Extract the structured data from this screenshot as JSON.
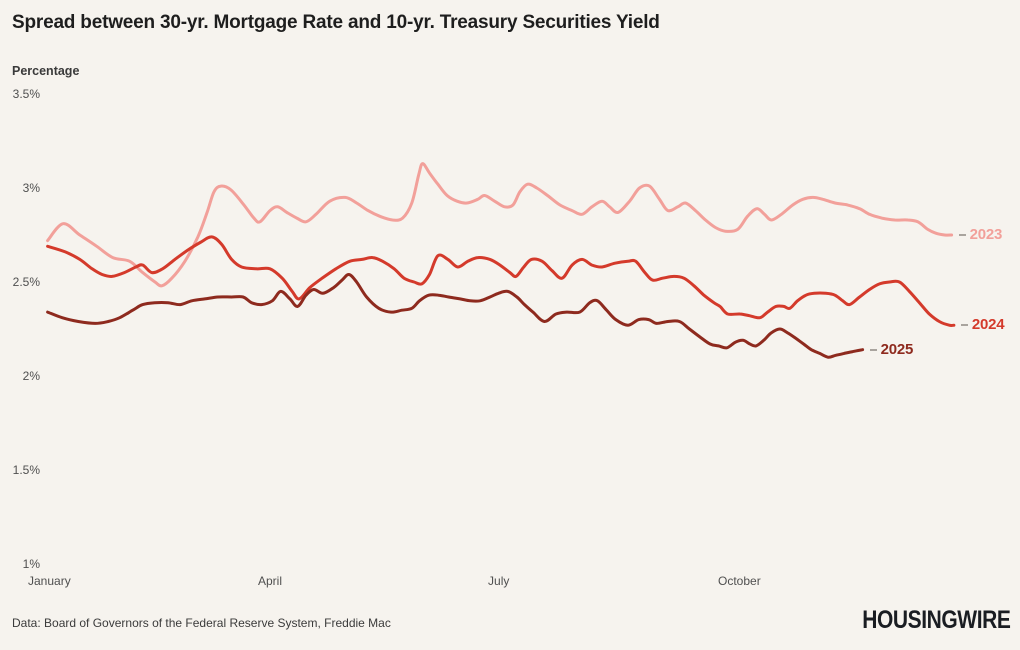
{
  "title": "Spread between 30-yr. Mortgage Rate and 10-yr. Treasury Securities Yield",
  "source": "Data: Board of Governors of the Federal Reserve System, Freddie Mac",
  "logo": "HOUSINGWIRE",
  "colors": {
    "background": "#f6f3ee",
    "series_2023": "#f2a09a",
    "series_2024": "#d43a2b",
    "series_2025": "#8e2a1e",
    "tick_text": "#4f4f4f",
    "title_text": "#1e1e1e"
  },
  "chart_data": {
    "type": "line",
    "title": "Spread between 30-yr. Mortgage Rate and 10-yr. Treasury Securities Yield",
    "ylabel": "Percentage",
    "xlabel": "",
    "ylim": [
      1,
      3.5
    ],
    "xlim_months": [
      0,
      12.1
    ],
    "grid": false,
    "legend_position": "line-end-right",
    "y_ticks": [
      {
        "value": 3.5,
        "label": "3.5%"
      },
      {
        "value": 3.0,
        "label": "3%"
      },
      {
        "value": 2.5,
        "label": "2.5%"
      },
      {
        "value": 2.0,
        "label": "2%"
      },
      {
        "value": 1.5,
        "label": "1.5%"
      },
      {
        "value": 1.0,
        "label": "1%"
      }
    ],
    "x_ticks": [
      {
        "month": 0,
        "label": "January"
      },
      {
        "month": 3,
        "label": "April"
      },
      {
        "month": 6,
        "label": "July"
      },
      {
        "month": 9,
        "label": "October"
      }
    ],
    "x_unit": "month of year (0 = Jan 1)",
    "y_unit": "percent spread",
    "series": [
      {
        "name": "2023",
        "color": "#f2a09a",
        "points": [
          [
            0.23,
            2.72
          ],
          [
            0.43,
            2.81
          ],
          [
            0.65,
            2.75
          ],
          [
            0.87,
            2.69
          ],
          [
            1.08,
            2.63
          ],
          [
            1.3,
            2.61
          ],
          [
            1.47,
            2.55
          ],
          [
            1.63,
            2.5
          ],
          [
            1.72,
            2.48
          ],
          [
            1.85,
            2.52
          ],
          [
            2.02,
            2.61
          ],
          [
            2.19,
            2.74
          ],
          [
            2.31,
            2.87
          ],
          [
            2.4,
            2.98
          ],
          [
            2.49,
            3.01
          ],
          [
            2.62,
            2.99
          ],
          [
            2.79,
            2.91
          ],
          [
            2.92,
            2.84
          ],
          [
            3.0,
            2.82
          ],
          [
            3.13,
            2.88
          ],
          [
            3.23,
            2.9
          ],
          [
            3.35,
            2.87
          ],
          [
            3.48,
            2.84
          ],
          [
            3.6,
            2.82
          ],
          [
            3.73,
            2.86
          ],
          [
            3.91,
            2.93
          ],
          [
            4.11,
            2.95
          ],
          [
            4.26,
            2.92
          ],
          [
            4.41,
            2.88
          ],
          [
            4.56,
            2.85
          ],
          [
            4.73,
            2.83
          ],
          [
            4.86,
            2.84
          ],
          [
            4.98,
            2.92
          ],
          [
            5.07,
            3.07
          ],
          [
            5.12,
            3.13
          ],
          [
            5.21,
            3.08
          ],
          [
            5.32,
            3.02
          ],
          [
            5.44,
            2.96
          ],
          [
            5.57,
            2.93
          ],
          [
            5.7,
            2.92
          ],
          [
            5.84,
            2.94
          ],
          [
            5.93,
            2.96
          ],
          [
            6.06,
            2.93
          ],
          [
            6.19,
            2.9
          ],
          [
            6.3,
            2.91
          ],
          [
            6.39,
            2.98
          ],
          [
            6.49,
            3.02
          ],
          [
            6.61,
            3.0
          ],
          [
            6.75,
            2.96
          ],
          [
            6.91,
            2.91
          ],
          [
            7.07,
            2.88
          ],
          [
            7.2,
            2.86
          ],
          [
            7.33,
            2.9
          ],
          [
            7.46,
            2.93
          ],
          [
            7.56,
            2.9
          ],
          [
            7.67,
            2.87
          ],
          [
            7.82,
            2.93
          ],
          [
            7.95,
            3.0
          ],
          [
            8.08,
            3.01
          ],
          [
            8.21,
            2.94
          ],
          [
            8.32,
            2.88
          ],
          [
            8.45,
            2.9
          ],
          [
            8.55,
            2.92
          ],
          [
            8.68,
            2.88
          ],
          [
            8.81,
            2.83
          ],
          [
            8.94,
            2.79
          ],
          [
            9.07,
            2.77
          ],
          [
            9.23,
            2.78
          ],
          [
            9.36,
            2.85
          ],
          [
            9.48,
            2.89
          ],
          [
            9.58,
            2.86
          ],
          [
            9.67,
            2.83
          ],
          [
            9.8,
            2.86
          ],
          [
            9.95,
            2.91
          ],
          [
            10.08,
            2.94
          ],
          [
            10.21,
            2.95
          ],
          [
            10.34,
            2.94
          ],
          [
            10.5,
            2.92
          ],
          [
            10.66,
            2.91
          ],
          [
            10.82,
            2.89
          ],
          [
            10.95,
            2.86
          ],
          [
            11.11,
            2.84
          ],
          [
            11.28,
            2.83
          ],
          [
            11.45,
            2.83
          ],
          [
            11.58,
            2.82
          ],
          [
            11.71,
            2.78
          ],
          [
            11.81,
            2.76
          ],
          [
            11.93,
            2.75
          ],
          [
            12.02,
            2.75
          ]
        ]
      },
      {
        "name": "2024",
        "color": "#d43a2b",
        "points": [
          [
            0.23,
            2.69
          ],
          [
            0.46,
            2.66
          ],
          [
            0.65,
            2.62
          ],
          [
            0.81,
            2.57
          ],
          [
            0.94,
            2.54
          ],
          [
            1.07,
            2.53
          ],
          [
            1.23,
            2.55
          ],
          [
            1.38,
            2.58
          ],
          [
            1.47,
            2.59
          ],
          [
            1.59,
            2.55
          ],
          [
            1.73,
            2.57
          ],
          [
            1.89,
            2.62
          ],
          [
            2.06,
            2.67
          ],
          [
            2.22,
            2.71
          ],
          [
            2.37,
            2.74
          ],
          [
            2.5,
            2.7
          ],
          [
            2.63,
            2.62
          ],
          [
            2.76,
            2.58
          ],
          [
            2.95,
            2.57
          ],
          [
            3.13,
            2.57
          ],
          [
            3.29,
            2.52
          ],
          [
            3.42,
            2.45
          ],
          [
            3.51,
            2.41
          ],
          [
            3.65,
            2.47
          ],
          [
            3.81,
            2.52
          ],
          [
            3.99,
            2.57
          ],
          [
            4.17,
            2.61
          ],
          [
            4.33,
            2.62
          ],
          [
            4.47,
            2.63
          ],
          [
            4.6,
            2.61
          ],
          [
            4.75,
            2.57
          ],
          [
            4.88,
            2.52
          ],
          [
            5.01,
            2.5
          ],
          [
            5.11,
            2.49
          ],
          [
            5.21,
            2.54
          ],
          [
            5.32,
            2.64
          ],
          [
            5.45,
            2.62
          ],
          [
            5.58,
            2.58
          ],
          [
            5.71,
            2.61
          ],
          [
            5.84,
            2.63
          ],
          [
            6.0,
            2.62
          ],
          [
            6.13,
            2.59
          ],
          [
            6.26,
            2.55
          ],
          [
            6.34,
            2.53
          ],
          [
            6.44,
            2.58
          ],
          [
            6.54,
            2.62
          ],
          [
            6.68,
            2.61
          ],
          [
            6.81,
            2.56
          ],
          [
            6.94,
            2.52
          ],
          [
            7.07,
            2.59
          ],
          [
            7.2,
            2.62
          ],
          [
            7.33,
            2.59
          ],
          [
            7.46,
            2.58
          ],
          [
            7.63,
            2.6
          ],
          [
            7.8,
            2.61
          ],
          [
            7.9,
            2.61
          ],
          [
            8.02,
            2.55
          ],
          [
            8.12,
            2.51
          ],
          [
            8.25,
            2.52
          ],
          [
            8.4,
            2.53
          ],
          [
            8.53,
            2.52
          ],
          [
            8.66,
            2.48
          ],
          [
            8.79,
            2.43
          ],
          [
            8.92,
            2.39
          ],
          [
            9.0,
            2.37
          ],
          [
            9.1,
            2.33
          ],
          [
            9.26,
            2.33
          ],
          [
            9.39,
            2.32
          ],
          [
            9.52,
            2.31
          ],
          [
            9.62,
            2.34
          ],
          [
            9.73,
            2.37
          ],
          [
            9.83,
            2.37
          ],
          [
            9.91,
            2.36
          ],
          [
            10.01,
            2.4
          ],
          [
            10.12,
            2.43
          ],
          [
            10.23,
            2.44
          ],
          [
            10.38,
            2.44
          ],
          [
            10.5,
            2.43
          ],
          [
            10.6,
            2.4
          ],
          [
            10.69,
            2.38
          ],
          [
            10.82,
            2.42
          ],
          [
            10.95,
            2.46
          ],
          [
            11.08,
            2.49
          ],
          [
            11.21,
            2.5
          ],
          [
            11.34,
            2.5
          ],
          [
            11.47,
            2.45
          ],
          [
            11.6,
            2.39
          ],
          [
            11.73,
            2.33
          ],
          [
            11.86,
            2.29
          ],
          [
            11.99,
            2.27
          ],
          [
            12.05,
            2.27
          ]
        ]
      },
      {
        "name": "2025",
        "color": "#8e2a1e",
        "points": [
          [
            0.23,
            2.34
          ],
          [
            0.42,
            2.31
          ],
          [
            0.63,
            2.29
          ],
          [
            0.85,
            2.28
          ],
          [
            1.02,
            2.29
          ],
          [
            1.17,
            2.31
          ],
          [
            1.34,
            2.35
          ],
          [
            1.47,
            2.38
          ],
          [
            1.63,
            2.39
          ],
          [
            1.8,
            2.39
          ],
          [
            1.96,
            2.38
          ],
          [
            2.11,
            2.4
          ],
          [
            2.28,
            2.41
          ],
          [
            2.45,
            2.42
          ],
          [
            2.63,
            2.42
          ],
          [
            2.78,
            2.42
          ],
          [
            2.89,
            2.39
          ],
          [
            3.02,
            2.38
          ],
          [
            3.16,
            2.4
          ],
          [
            3.27,
            2.45
          ],
          [
            3.39,
            2.41
          ],
          [
            3.49,
            2.37
          ],
          [
            3.6,
            2.43
          ],
          [
            3.7,
            2.46
          ],
          [
            3.82,
            2.44
          ],
          [
            3.96,
            2.47
          ],
          [
            4.07,
            2.51
          ],
          [
            4.16,
            2.54
          ],
          [
            4.26,
            2.5
          ],
          [
            4.39,
            2.42
          ],
          [
            4.55,
            2.36
          ],
          [
            4.71,
            2.34
          ],
          [
            4.85,
            2.35
          ],
          [
            4.98,
            2.36
          ],
          [
            5.08,
            2.4
          ],
          [
            5.2,
            2.43
          ],
          [
            5.33,
            2.43
          ],
          [
            5.46,
            2.42
          ],
          [
            5.61,
            2.41
          ],
          [
            5.74,
            2.4
          ],
          [
            5.87,
            2.4
          ],
          [
            6.0,
            2.42
          ],
          [
            6.11,
            2.44
          ],
          [
            6.23,
            2.45
          ],
          [
            6.35,
            2.42
          ],
          [
            6.45,
            2.38
          ],
          [
            6.56,
            2.34
          ],
          [
            6.71,
            2.29
          ],
          [
            6.86,
            2.33
          ],
          [
            7.0,
            2.34
          ],
          [
            7.17,
            2.34
          ],
          [
            7.3,
            2.39
          ],
          [
            7.4,
            2.4
          ],
          [
            7.52,
            2.35
          ],
          [
            7.64,
            2.3
          ],
          [
            7.8,
            2.27
          ],
          [
            7.94,
            2.3
          ],
          [
            8.07,
            2.3
          ],
          [
            8.17,
            2.28
          ],
          [
            8.32,
            2.29
          ],
          [
            8.47,
            2.29
          ],
          [
            8.6,
            2.25
          ],
          [
            8.73,
            2.21
          ],
          [
            8.87,
            2.17
          ],
          [
            8.98,
            2.16
          ],
          [
            9.09,
            2.15
          ],
          [
            9.2,
            2.18
          ],
          [
            9.3,
            2.19
          ],
          [
            9.39,
            2.17
          ],
          [
            9.47,
            2.16
          ],
          [
            9.57,
            2.19
          ],
          [
            9.67,
            2.23
          ],
          [
            9.78,
            2.25
          ],
          [
            9.88,
            2.23
          ],
          [
            9.99,
            2.2
          ],
          [
            10.09,
            2.17
          ],
          [
            10.19,
            2.14
          ],
          [
            10.3,
            2.12
          ],
          [
            10.41,
            2.1
          ],
          [
            10.51,
            2.11
          ],
          [
            10.62,
            2.12
          ],
          [
            10.73,
            2.13
          ],
          [
            10.86,
            2.14
          ]
        ]
      }
    ]
  }
}
